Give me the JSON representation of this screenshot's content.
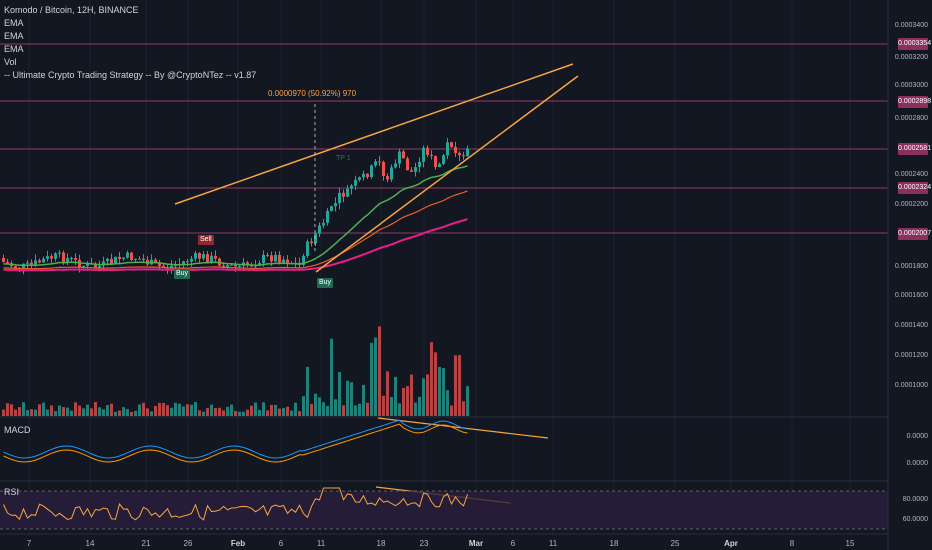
{
  "header": {
    "symbol": "Komodo / Bitcoin, 12H, BINANCE",
    "indicators": [
      "EMA",
      "EMA",
      "EMA",
      "Vol",
      "-- Ultimate Crypto Trading Strategy -- By @CryptoNTez -- v1.87"
    ]
  },
  "panes": {
    "macd_label": "MACD",
    "rsi_label": "RSI"
  },
  "price_axis": {
    "ticks": [
      "0.0003400",
      "0.0003200",
      "0.0003000",
      "0.0002800",
      "0.0002400",
      "0.0002200",
      "0.0002000",
      "0.0001800",
      "0.0001600",
      "0.0001400",
      "0.0001200",
      "0.0001000"
    ],
    "level_labels": [
      "0.0003354",
      "0.0002898",
      "0.0002581",
      "0.0002324",
      "0.0002007"
    ]
  },
  "macd_axis": {
    "ticks": [
      "0.0000",
      "0.0000"
    ]
  },
  "rsi_axis": {
    "ticks": [
      "80.0000",
      "60.0000",
      "40.0000"
    ]
  },
  "time_axis": {
    "ticks": [
      "7",
      "14",
      "21",
      "26",
      "Feb",
      "6",
      "11",
      "18",
      "23",
      "Mar",
      "6",
      "11",
      "18",
      "25",
      "Apr",
      "8",
      "15"
    ]
  },
  "annotations": {
    "measure": "0.0000970 (50.92%) 970",
    "signals": [
      "Sell",
      "Buy",
      "Buy"
    ],
    "tp_label": "TP 1"
  },
  "colors": {
    "background": "#131722",
    "level_line": "#c2477c",
    "trendline": "#f7a541",
    "up": "#26a69a",
    "down": "#ef5350",
    "ema_fast": "#4caf50",
    "ema_mid": "#e8602c",
    "ema_slow": "#e91e8c",
    "macd": "#2196f3",
    "signal": "#ff9800",
    "rsi": "#f7a541",
    "rsi_band": "#2a1f3d"
  }
}
